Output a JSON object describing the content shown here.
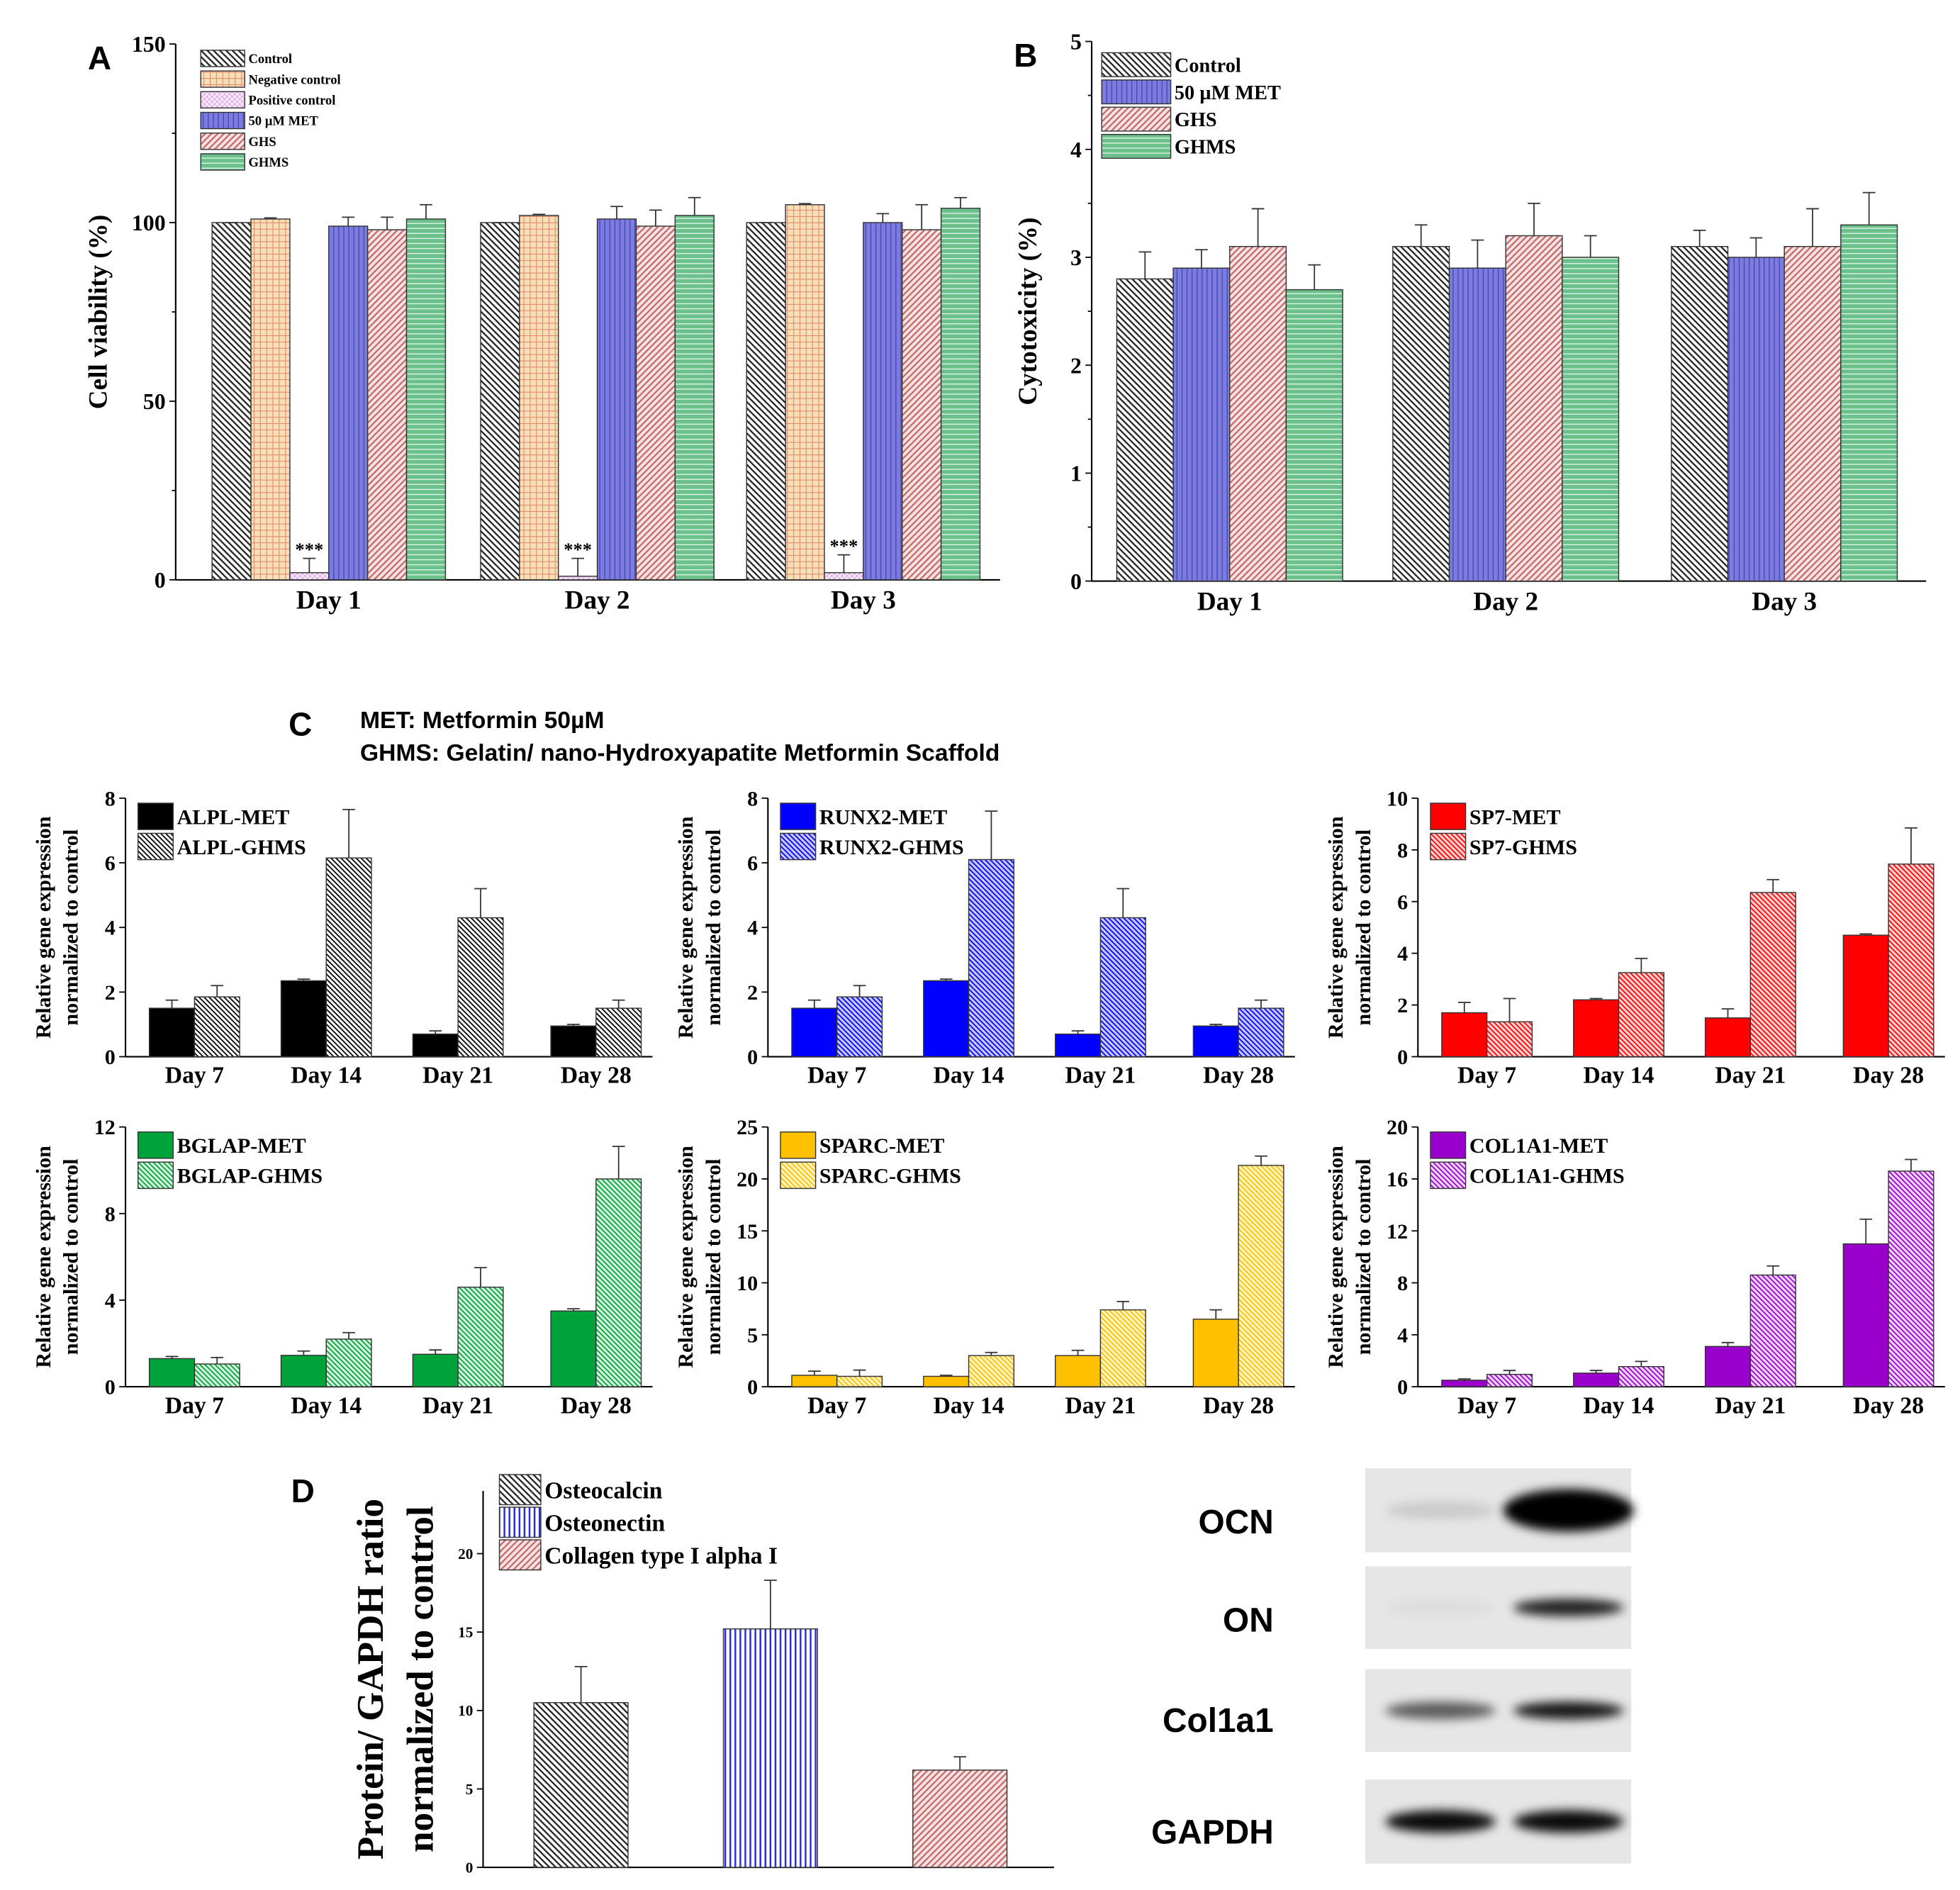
{
  "panel_letters": {
    "a": "A",
    "b": "B",
    "c": "C",
    "d": "D"
  },
  "panel_c_notes": [
    "MET: Metformin 50µM",
    "GHMS: Gelatin/ nano-Hydroxyapatite Metformin Scaffold"
  ],
  "colors": {
    "control": "#333333",
    "negative_control": "#f7dfb8",
    "positive_control": "#e2b6e8",
    "met": "#7b7be0",
    "ghs": "#c46a6a",
    "ghms": "#6cc08c",
    "alpl": "#000000",
    "runx2": "#0000ff",
    "sp7": "#ff0000",
    "bglap": "#00a33a",
    "sparc": "#ffc000",
    "col1a1": "#9900cc"
  },
  "chart_data": [
    {
      "type": "bar",
      "panel": "A",
      "ylabel": [
        "Cell viability (%)"
      ],
      "ylim": [
        0,
        150
      ],
      "yticks": [
        "0",
        "50",
        "100",
        "150"
      ],
      "categories": [
        "Day 1",
        "Day 2",
        "Day 3"
      ],
      "legend": "top-left",
      "annotation": "***",
      "series": [
        {
          "name": "Control",
          "values": [
            100,
            100,
            100
          ],
          "err": [
            0,
            0,
            0
          ],
          "pattern": "control"
        },
        {
          "name": "Negative control",
          "values": [
            101,
            102,
            105
          ],
          "err": [
            0.3,
            0.3,
            0.3
          ],
          "pattern": "negative_control"
        },
        {
          "name": "Positive control",
          "values": [
            2,
            1,
            2
          ],
          "err": [
            4,
            5,
            5
          ],
          "pattern": "positive_control",
          "marks": [
            "***",
            "***",
            "***"
          ]
        },
        {
          "name": "50 µM MET",
          "values": [
            99,
            101,
            100
          ],
          "err": [
            2.5,
            3.5,
            2.5
          ],
          "pattern": "met"
        },
        {
          "name": "GHS",
          "values": [
            98,
            99,
            98
          ],
          "err": [
            3.5,
            4.5,
            7
          ],
          "pattern": "ghs"
        },
        {
          "name": "GHMS",
          "values": [
            101,
            102,
            104
          ],
          "err": [
            4,
            5,
            3
          ],
          "pattern": "ghms"
        }
      ]
    },
    {
      "type": "bar",
      "panel": "B",
      "ylabel": [
        "Cytotoxicity (%)"
      ],
      "ylim": [
        0,
        5
      ],
      "yticks": [
        "0",
        "1",
        "2",
        "3",
        "4",
        "5"
      ],
      "categories": [
        "Day 1",
        "Day 2",
        "Day 3"
      ],
      "legend": "top-left",
      "series": [
        {
          "name": "Control",
          "values": [
            2.8,
            3.1,
            3.1
          ],
          "err": [
            0.25,
            0.2,
            0.15
          ],
          "pattern": "control"
        },
        {
          "name": "50 µM MET",
          "values": [
            2.9,
            2.9,
            3.0
          ],
          "err": [
            0.17,
            0.26,
            0.18
          ],
          "pattern": "met"
        },
        {
          "name": "GHS",
          "values": [
            3.1,
            3.2,
            3.1
          ],
          "err": [
            0.35,
            0.3,
            0.35
          ],
          "pattern": "ghs"
        },
        {
          "name": "GHMS",
          "values": [
            2.7,
            3.0,
            3.3
          ],
          "err": [
            0.23,
            0.2,
            0.3
          ],
          "pattern": "ghms"
        }
      ]
    },
    {
      "type": "bar",
      "panel": "C-ALPL",
      "ylabel": [
        "Relative gene expression",
        "normalized to control"
      ],
      "ylim": [
        0,
        8
      ],
      "yticks": [
        "0",
        "2",
        "4",
        "6",
        "8"
      ],
      "categories": [
        "Day 7",
        "Day 14",
        "Day 21",
        "Day 28"
      ],
      "legend": "top-left",
      "series": [
        {
          "name": "ALPL-MET",
          "values": [
            1.5,
            2.35,
            0.7,
            0.95
          ],
          "err": [
            0.25,
            0.05,
            0.1,
            0.05
          ],
          "pattern": "alpl_solid"
        },
        {
          "name": "ALPL-GHMS",
          "values": [
            1.85,
            6.15,
            4.3,
            1.5
          ],
          "err": [
            0.35,
            1.5,
            0.9,
            0.25
          ],
          "pattern": "alpl_hatch"
        }
      ]
    },
    {
      "type": "bar",
      "panel": "C-RUNX2",
      "ylabel": [
        "Relative gene expression",
        "normalized to control"
      ],
      "ylim": [
        0,
        8
      ],
      "yticks": [
        "0",
        "2",
        "4",
        "6",
        "8"
      ],
      "categories": [
        "Day 7",
        "Day 14",
        "Day 21",
        "Day 28"
      ],
      "legend": "top-left",
      "series": [
        {
          "name": "RUNX2-MET",
          "values": [
            1.5,
            2.35,
            0.7,
            0.95
          ],
          "err": [
            0.25,
            0.05,
            0.1,
            0.05
          ],
          "pattern": "runx2_solid"
        },
        {
          "name": "RUNX2-GHMS",
          "values": [
            1.85,
            6.1,
            4.3,
            1.5
          ],
          "err": [
            0.35,
            1.5,
            0.9,
            0.25
          ],
          "pattern": "runx2_hatch"
        }
      ]
    },
    {
      "type": "bar",
      "panel": "C-SP7",
      "ylabel": [
        "Relative gene expression",
        "normalized to control"
      ],
      "ylim": [
        0,
        10
      ],
      "yticks": [
        "0",
        "2",
        "4",
        "6",
        "8",
        "10"
      ],
      "categories": [
        "Day 7",
        "Day 14",
        "Day 21",
        "Day 28"
      ],
      "legend": "top-left",
      "series": [
        {
          "name": "SP7-MET",
          "values": [
            1.7,
            2.2,
            1.5,
            4.7
          ],
          "err": [
            0.4,
            0.05,
            0.35,
            0.05
          ],
          "pattern": "sp7_solid"
        },
        {
          "name": "SP7-GHMS",
          "values": [
            1.35,
            3.25,
            6.35,
            7.45
          ],
          "err": [
            0.9,
            0.55,
            0.5,
            1.4
          ],
          "pattern": "sp7_hatch"
        }
      ]
    },
    {
      "type": "bar",
      "panel": "C-BGLAP",
      "ylabel": [
        "Relative gene expression",
        "normalized to control"
      ],
      "ylim": [
        0,
        12
      ],
      "yticks": [
        "0",
        "4",
        "8",
        "12"
      ],
      "categories": [
        "Day 7",
        "Day 14",
        "Day 21",
        "Day 28"
      ],
      "legend": "top-left",
      "series": [
        {
          "name": "BGLAP-MET",
          "values": [
            1.3,
            1.45,
            1.5,
            3.5
          ],
          "err": [
            0.1,
            0.2,
            0.2,
            0.1
          ],
          "pattern": "bglap_solid"
        },
        {
          "name": "BGLAP-GHMS",
          "values": [
            1.05,
            2.2,
            4.6,
            9.6
          ],
          "err": [
            0.3,
            0.3,
            0.9,
            1.5
          ],
          "pattern": "bglap_hatch"
        }
      ]
    },
    {
      "type": "bar",
      "panel": "C-SPARC",
      "ylabel": [
        "Relative gene expression",
        "normalized to control"
      ],
      "ylim": [
        0,
        25
      ],
      "yticks": [
        "0",
        "5",
        "10",
        "15",
        "20",
        "25"
      ],
      "categories": [
        "Day 7",
        "Day 14",
        "Day 21",
        "Day 28"
      ],
      "legend": "top-left",
      "series": [
        {
          "name": "SPARC-MET",
          "values": [
            1.1,
            1.0,
            3.0,
            6.5
          ],
          "err": [
            0.4,
            0.1,
            0.5,
            0.9
          ],
          "pattern": "sparc_solid"
        },
        {
          "name": "SPARC-GHMS",
          "values": [
            1.0,
            3.0,
            7.4,
            21.3
          ],
          "err": [
            0.6,
            0.3,
            0.8,
            0.9
          ],
          "pattern": "sparc_hatch"
        }
      ]
    },
    {
      "type": "bar",
      "panel": "C-COL1A1",
      "ylabel": [
        "Relative gene expression",
        "normalized to control"
      ],
      "ylim": [
        0,
        20
      ],
      "yticks": [
        "0",
        "4",
        "8",
        "12",
        "16",
        "20"
      ],
      "categories": [
        "Day 7",
        "Day 14",
        "Day 21",
        "Day 28"
      ],
      "legend": "top-left",
      "series": [
        {
          "name": "COL1A1-MET",
          "values": [
            0.5,
            1.05,
            3.1,
            11.0
          ],
          "err": [
            0.1,
            0.2,
            0.3,
            1.9
          ],
          "pattern": "col1a1_solid"
        },
        {
          "name": "COL1A1-GHMS",
          "values": [
            0.95,
            1.55,
            8.6,
            16.6
          ],
          "err": [
            0.3,
            0.4,
            0.7,
            0.9
          ],
          "pattern": "col1a1_hatch"
        }
      ]
    },
    {
      "type": "bar",
      "panel": "D",
      "ylabel": [
        "Protein/ GAPDH ratio",
        "normalized to control"
      ],
      "ylim": [
        0,
        24
      ],
      "yticks": [
        "0",
        "5",
        "10",
        "15",
        "20"
      ],
      "categories": [
        ""
      ],
      "legend": "top-left",
      "series": [
        {
          "name": "Osteocalcin",
          "values": [
            10.5
          ],
          "err": [
            2.3
          ],
          "pattern": "control"
        },
        {
          "name": "Osteonectin",
          "values": [
            15.2
          ],
          "err": [
            3.1
          ],
          "pattern": "met_d"
        },
        {
          "name": "Collagen type I alpha I",
          "values": [
            6.2
          ],
          "err": [
            0.85
          ],
          "pattern": "ghs"
        }
      ]
    }
  ],
  "western_blot": {
    "rows": [
      {
        "label": "OCN",
        "band_intensity": [
          0.12,
          1.0
        ]
      },
      {
        "label": "ON",
        "band_intensity": [
          0.04,
          0.85
        ]
      },
      {
        "label": "Col1a1",
        "band_intensity": [
          0.6,
          0.9
        ]
      },
      {
        "label": "GAPDH",
        "band_intensity": [
          0.95,
          0.95
        ]
      }
    ]
  }
}
